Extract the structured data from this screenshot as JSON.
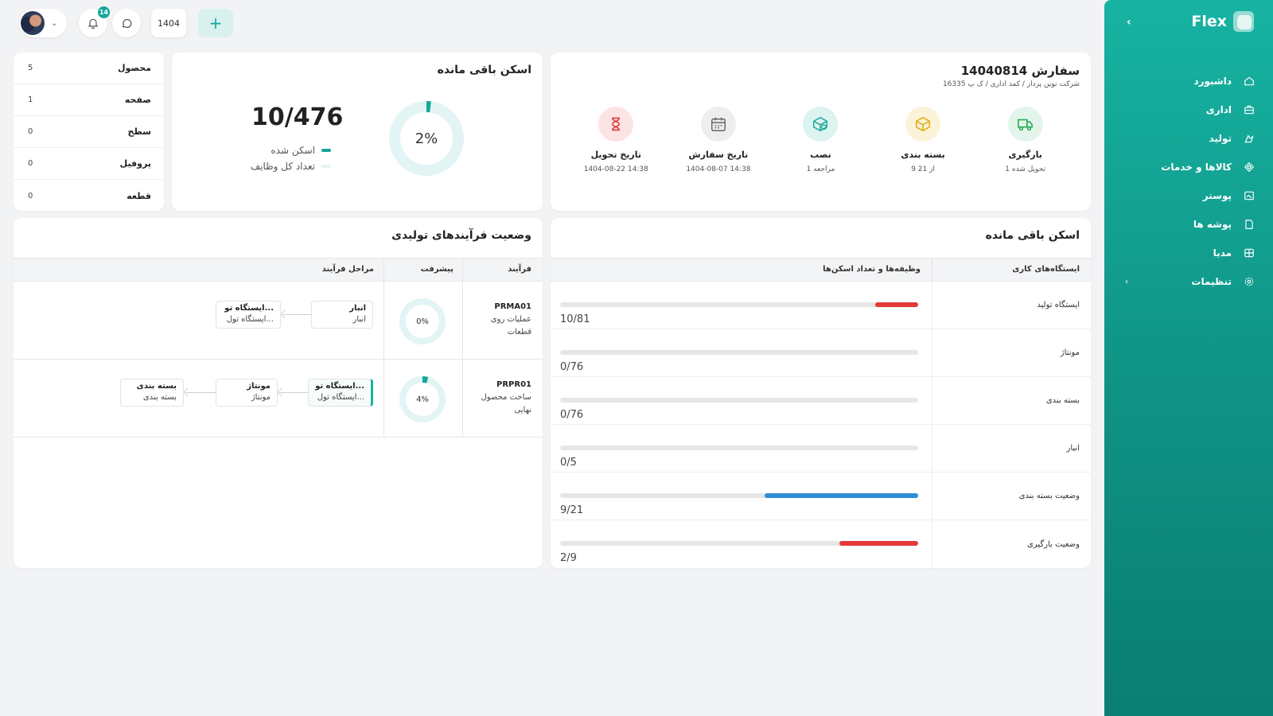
{
  "topbar": {
    "notifications_count": "14",
    "year": "1404",
    "add_label": "+"
  },
  "sidebar": {
    "logo": "Flex",
    "items": [
      {
        "label": "داشبورد",
        "icon": "home-icon"
      },
      {
        "label": "اداری",
        "icon": "briefcase-icon"
      },
      {
        "label": "تولید",
        "icon": "factory-icon"
      },
      {
        "label": "کالاها و خدمات",
        "icon": "diamond-icon"
      },
      {
        "label": "پوستر",
        "icon": "image-icon"
      },
      {
        "label": "پوشه ها",
        "icon": "folder-icon"
      },
      {
        "label": "مدیا",
        "icon": "globe-icon"
      },
      {
        "label": "تنظیمات",
        "icon": "gear-icon"
      }
    ]
  },
  "order": {
    "title": "سفارش 14040814",
    "subtitle": "شرکت نوین پرداز / کمد اداری / ک پ 16335",
    "milestones": [
      {
        "label": "بارگیری",
        "value": "1 تحویل شده",
        "icon": "truck-icon",
        "color": "#2fae5a",
        "bg": "#e3f5ea"
      },
      {
        "label": "بسته بندی",
        "value": "9 از 21",
        "icon": "package-icon",
        "color": "#e0b21a",
        "bg": "#fbf3d9"
      },
      {
        "label": "نصب",
        "value": "1 مراجعه",
        "icon": "install-box-icon",
        "color": "#17a89a",
        "bg": "#dcf3f0"
      },
      {
        "label": "تاریخ سفارش",
        "value": "1404-08-07 14:38",
        "icon": "calendar-icon",
        "color": "#666666",
        "bg": "#eeeeee"
      },
      {
        "label": "تاریخ تحویل",
        "value": "1404-08-22 14:38",
        "icon": "hourglass-icon",
        "color": "#e04848",
        "bg": "#fde4e4"
      }
    ]
  },
  "scan_summary": {
    "title": "اسکن باقی مانده",
    "percent_label": "2%",
    "percent": 2,
    "count": "10/476",
    "legend_scanned": "اسکن شده",
    "legend_total": "تعداد کل وظایف",
    "scanned_color": "#12a89b",
    "total_color": "#e2f4f3"
  },
  "counts": [
    {
      "label": "محصول",
      "value": "5"
    },
    {
      "label": "صفحه",
      "value": "1"
    },
    {
      "label": "سطح",
      "value": "0"
    },
    {
      "label": "پروفیل",
      "value": "0"
    },
    {
      "label": "قطعه",
      "value": "0"
    }
  ],
  "workstations": {
    "title": "اسکن باقی مانده",
    "col_station": "ایستگاه‌های کاری",
    "col_tasks": "وظیفه‌ها و تعداد اسکن‌ها",
    "rows": [
      {
        "name": "ایستگاه تولید",
        "value": "10/81",
        "fill": 0.12,
        "color": "#e23a3a"
      },
      {
        "name": "مونتاژ",
        "value": "0/76",
        "fill": 0,
        "color": "#e23a3a"
      },
      {
        "name": "بسته بندی",
        "value": "0/76",
        "fill": 0,
        "color": "#e23a3a"
      },
      {
        "name": "انبار",
        "value": "0/5",
        "fill": 0,
        "color": "#e23a3a"
      },
      {
        "name": "وضعیت بسته بندی",
        "value": "9/21",
        "fill": 0.43,
        "color": "#2f8fd6"
      },
      {
        "name": "وضعیت بارگیری",
        "value": "2/9",
        "fill": 0.22,
        "color": "#e23a3a"
      }
    ]
  },
  "processes": {
    "title": "وضعیت فرآیندهای تولیدی",
    "col_process": "فرآیند",
    "col_progress": "پیشرفت",
    "col_steps": "مراحل فرآیند",
    "rows": [
      {
        "code": "PRMA01",
        "desc": "عملیات روی قطعات",
        "progress_label": "0%",
        "progress": 0,
        "steps": [
          {
            "title": "انبار",
            "sub": "انبار"
          },
          {
            "title": "ایستگاه تو...",
            "sub": "ایستگاه تول..."
          }
        ]
      },
      {
        "code": "PRPR01",
        "desc": "ساخت محصول نهایی",
        "progress_label": "4%",
        "progress": 4,
        "steps": [
          {
            "title": "ایستگاه تو...",
            "sub": "ایستگاه تول..."
          },
          {
            "title": "مونتاژ",
            "sub": "مونتاژ"
          },
          {
            "title": "بسته بندی",
            "sub": "بسته بندی"
          }
        ]
      }
    ]
  }
}
